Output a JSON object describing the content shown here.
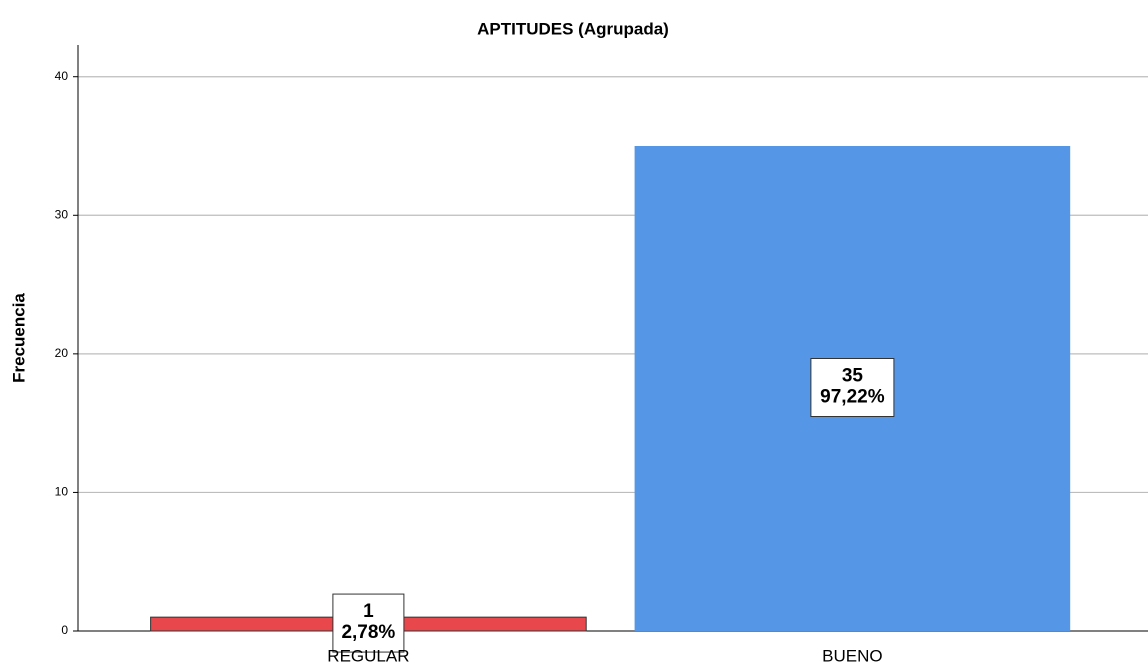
{
  "chart_data": {
    "type": "bar",
    "title": "APTITUDES (Agrupada)",
    "y_label": "Frecuencia",
    "categories": [
      "REGULAR",
      "BUENO"
    ],
    "values": [
      1,
      35
    ],
    "percent_values": [
      2.78,
      97.22
    ],
    "percent_labels": [
      "2,78%",
      "97,22%"
    ],
    "colors": [
      "#e8474c",
      "#5596e6"
    ],
    "ylim": [
      0,
      42
    ],
    "yticks": [
      0,
      10,
      20,
      30,
      40
    ],
    "grid": true
  }
}
